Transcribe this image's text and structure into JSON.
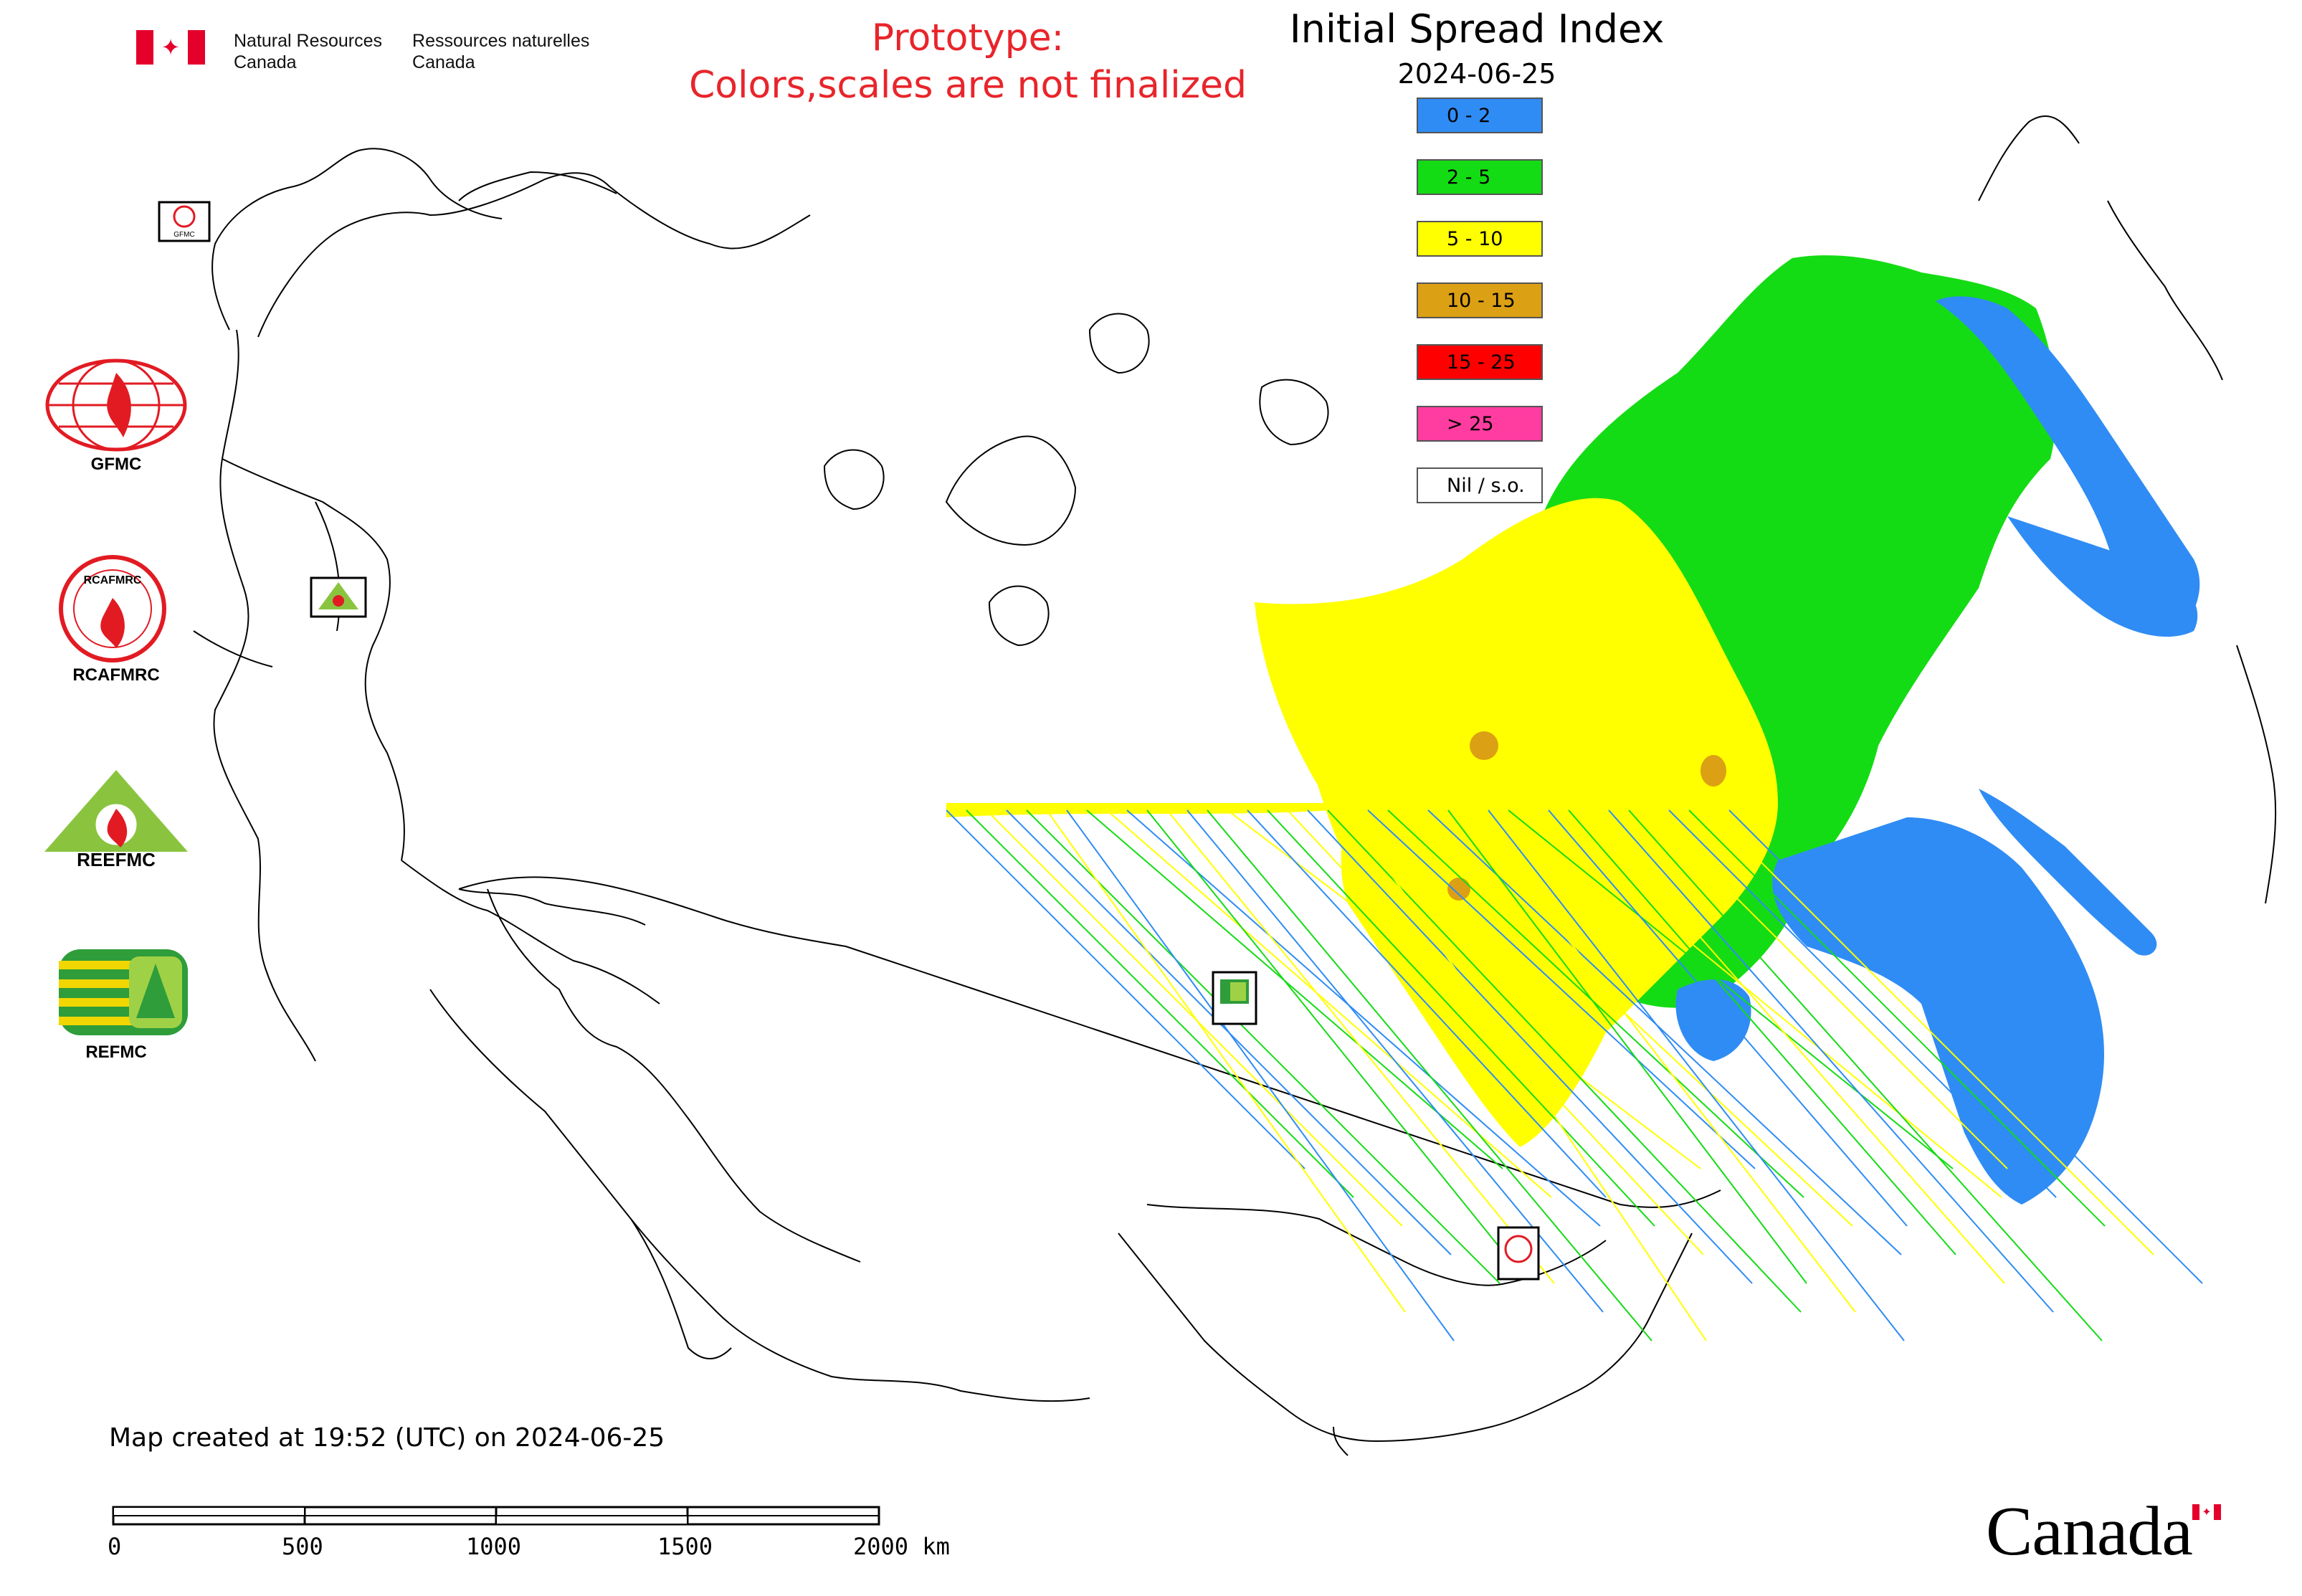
{
  "header": {
    "department_en_line1": "Natural Resources",
    "department_en_line2": "Canada",
    "department_fr_line1": "Ressources naturelles",
    "department_fr_line2": "Canada"
  },
  "notice": {
    "line1": "Prototype:",
    "line2": "Colors,scales are not finalized"
  },
  "map": {
    "title": "Initial Spread Index",
    "date": "2024-06-25",
    "legend": [
      {
        "label": "0 - 2",
        "color": "#2f8cf4"
      },
      {
        "label": "2 - 5",
        "color": "#14dc14"
      },
      {
        "label": "5 - 10",
        "color": "#ffff00"
      },
      {
        "label": "10 - 15",
        "color": "#dca014"
      },
      {
        "label": "15 - 25",
        "color": "#ff0000"
      },
      {
        "label": "> 25",
        "color": "#ff3ca0"
      },
      {
        "label": "Nil / s.o.",
        "color": "#ffffff"
      }
    ]
  },
  "logos": [
    {
      "name": "GFMC",
      "label": "GFMC"
    },
    {
      "name": "RCAFMRC",
      "label": "RCAFMRC"
    },
    {
      "name": "REEFMC",
      "label": "REEFMC"
    },
    {
      "name": "REFMC",
      "label": "REFMC"
    }
  ],
  "map_markers": {
    "gfmc": "GFMC",
    "reefmc": "REEFMC",
    "refmc": "REFMC",
    "rcafmrc": "RCAFMRC"
  },
  "footer": {
    "created": "Map created at 19:52 (UTC) on 2024-06-25",
    "scale_ticks": [
      "0",
      "500",
      "1000",
      "1500",
      "2000 km"
    ],
    "wordmark": "Canada"
  }
}
